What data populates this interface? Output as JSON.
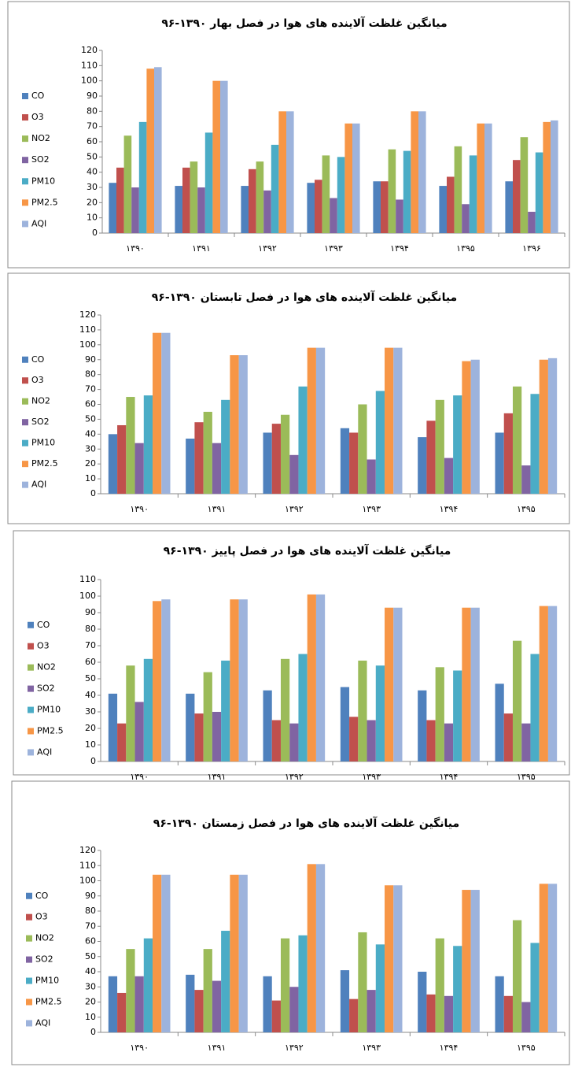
{
  "chart_data": [
    {
      "type": "bar",
      "title": "میانگین غلظت آلاینده های هوا در فصل بهار ۱۳۹۰-۹۶",
      "categories": [
        "۱۳۹۰",
        "۱۳۹۱",
        "۱۳۹۲",
        "۱۳۹۳",
        "۱۳۹۴",
        "۱۳۹۵",
        "۱۳۹۶"
      ],
      "ylim": [
        0,
        120
      ],
      "yticks": [
        0,
        10,
        20,
        30,
        40,
        50,
        60,
        70,
        80,
        90,
        100,
        110,
        120
      ],
      "legend": "left",
      "series": [
        {
          "name": "CO",
          "color": "#4f81bd",
          "values": [
            33,
            31,
            31,
            33,
            34,
            31,
            34
          ]
        },
        {
          "name": "O3",
          "color": "#c0504d",
          "values": [
            43,
            43,
            42,
            35,
            34,
            37,
            48
          ]
        },
        {
          "name": "NO2",
          "color": "#9bbb59",
          "values": [
            64,
            47,
            47,
            51,
            55,
            57,
            63
          ]
        },
        {
          "name": "SO2",
          "color": "#8064a2",
          "values": [
            30,
            30,
            28,
            23,
            22,
            19,
            14
          ]
        },
        {
          "name": "PM10",
          "color": "#4bacc6",
          "values": [
            73,
            66,
            58,
            50,
            54,
            51,
            53
          ]
        },
        {
          "name": "PM2.5",
          "color": "#f79646",
          "values": [
            108,
            100,
            80,
            72,
            80,
            72,
            73
          ]
        },
        {
          "name": "AQI",
          "color": "#9db3dc",
          "values": [
            109,
            100,
            80,
            72,
            80,
            72,
            74
          ]
        }
      ]
    },
    {
      "type": "bar",
      "title": "میانگین غلظت آلاینده های هوا در فصل تابستان ۱۳۹۰-۹۶",
      "categories": [
        "۱۳۹۰",
        "۱۳۹۱",
        "۱۳۹۲",
        "۱۳۹۳",
        "۱۳۹۴",
        "۱۳۹۵"
      ],
      "ylim": [
        0,
        120
      ],
      "yticks": [
        0,
        10,
        20,
        30,
        40,
        50,
        60,
        70,
        80,
        90,
        100,
        110,
        120
      ],
      "legend": "left",
      "series": [
        {
          "name": "CO",
          "color": "#4f81bd",
          "values": [
            40,
            37,
            41,
            44,
            38,
            41
          ]
        },
        {
          "name": "O3",
          "color": "#c0504d",
          "values": [
            46,
            48,
            47,
            41,
            49,
            54
          ]
        },
        {
          "name": "NO2",
          "color": "#9bbb59",
          "values": [
            65,
            55,
            53,
            60,
            63,
            72
          ]
        },
        {
          "name": "SO2",
          "color": "#8064a2",
          "values": [
            34,
            34,
            26,
            23,
            24,
            19
          ]
        },
        {
          "name": "PM10",
          "color": "#4bacc6",
          "values": [
            66,
            63,
            72,
            69,
            66,
            67
          ]
        },
        {
          "name": "PM2.5",
          "color": "#f79646",
          "values": [
            108,
            93,
            98,
            98,
            89,
            90
          ]
        },
        {
          "name": "AQI",
          "color": "#9db3dc",
          "values": [
            108,
            93,
            98,
            98,
            90,
            91
          ]
        }
      ]
    },
    {
      "type": "bar",
      "title": "میانگین غلظت آلاینده های هوا در فصل پاییز ۱۳۹۰-۹۶",
      "categories": [
        "۱۳۹۰",
        "۱۳۹۱",
        "۱۳۹۲",
        "۱۳۹۳",
        "۱۳۹۴",
        "۱۳۹۵"
      ],
      "ylim": [
        0,
        110
      ],
      "yticks": [
        0,
        10,
        20,
        30,
        40,
        50,
        60,
        70,
        80,
        90,
        100,
        110
      ],
      "legend": "left",
      "series": [
        {
          "name": "CO",
          "color": "#4f81bd",
          "values": [
            41,
            41,
            43,
            45,
            43,
            47
          ]
        },
        {
          "name": "O3",
          "color": "#c0504d",
          "values": [
            23,
            29,
            25,
            27,
            25,
            29
          ]
        },
        {
          "name": "NO2",
          "color": "#9bbb59",
          "values": [
            58,
            54,
            62,
            61,
            57,
            73
          ]
        },
        {
          "name": "SO2",
          "color": "#8064a2",
          "values": [
            36,
            30,
            23,
            25,
            23,
            23
          ]
        },
        {
          "name": "PM10",
          "color": "#4bacc6",
          "values": [
            62,
            61,
            65,
            58,
            55,
            65
          ]
        },
        {
          "name": "PM2.5",
          "color": "#f79646",
          "values": [
            97,
            98,
            101,
            93,
            93,
            94
          ]
        },
        {
          "name": "AQI",
          "color": "#9db3dc",
          "values": [
            98,
            98,
            101,
            93,
            93,
            94
          ]
        }
      ]
    },
    {
      "type": "bar",
      "title": "میانگین غلظت آلاینده های هوا در فصل زمستان ۱۳۹۰-۹۶",
      "categories": [
        "۱۳۹۰",
        "۱۳۹۱",
        "۱۳۹۲",
        "۱۳۹۳",
        "۱۳۹۴",
        "۱۳۹۵"
      ],
      "ylim": [
        0,
        120
      ],
      "yticks": [
        0,
        10,
        20,
        30,
        40,
        50,
        60,
        70,
        80,
        90,
        100,
        110,
        120
      ],
      "legend": "left",
      "series": [
        {
          "name": "CO",
          "color": "#4f81bd",
          "values": [
            37,
            38,
            37,
            41,
            40,
            37
          ]
        },
        {
          "name": "O3",
          "color": "#c0504d",
          "values": [
            26,
            28,
            21,
            22,
            25,
            24
          ]
        },
        {
          "name": "NO2",
          "color": "#9bbb59",
          "values": [
            55,
            55,
            62,
            66,
            62,
            74
          ]
        },
        {
          "name": "SO2",
          "color": "#8064a2",
          "values": [
            37,
            34,
            30,
            28,
            24,
            20
          ]
        },
        {
          "name": "PM10",
          "color": "#4bacc6",
          "values": [
            62,
            67,
            64,
            58,
            57,
            59
          ]
        },
        {
          "name": "PM2.5",
          "color": "#f79646",
          "values": [
            104,
            104,
            111,
            97,
            94,
            98
          ]
        },
        {
          "name": "AQI",
          "color": "#9db3dc",
          "values": [
            104,
            104,
            111,
            97,
            94,
            98
          ]
        }
      ]
    }
  ]
}
